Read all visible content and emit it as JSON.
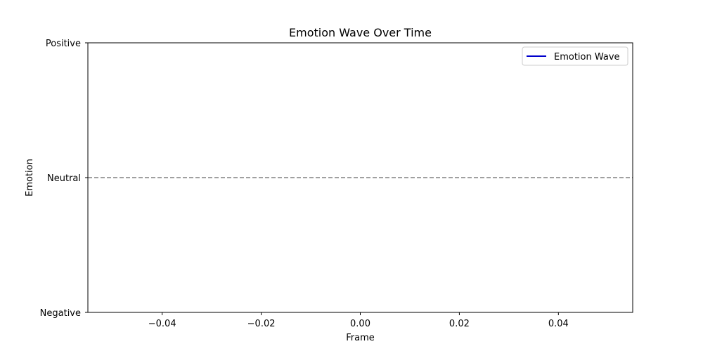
{
  "chart_data": {
    "type": "line",
    "title": "Emotion Wave Over Time",
    "xlabel": "Frame",
    "ylabel": "Emotion",
    "xlim": [
      -0.055,
      0.055
    ],
    "ylim": [
      -1,
      1
    ],
    "x_ticks": [
      {
        "value": -0.04,
        "label": "−0.04"
      },
      {
        "value": -0.02,
        "label": "−0.02"
      },
      {
        "value": 0.0,
        "label": "0.00"
      },
      {
        "value": 0.02,
        "label": "0.02"
      },
      {
        "value": 0.04,
        "label": "0.04"
      }
    ],
    "y_ticks": [
      {
        "value": -1,
        "label": "Negative"
      },
      {
        "value": 0,
        "label": "Neutral"
      },
      {
        "value": 1,
        "label": "Positive"
      }
    ],
    "series": [
      {
        "name": "Emotion Wave",
        "color": "#0000cc",
        "x": [],
        "y": []
      }
    ],
    "reference_lines": [
      {
        "axis": "y",
        "value": 0,
        "color": "#808080",
        "style": "dashed"
      }
    ],
    "grid": false,
    "legend_position": "top-right"
  }
}
